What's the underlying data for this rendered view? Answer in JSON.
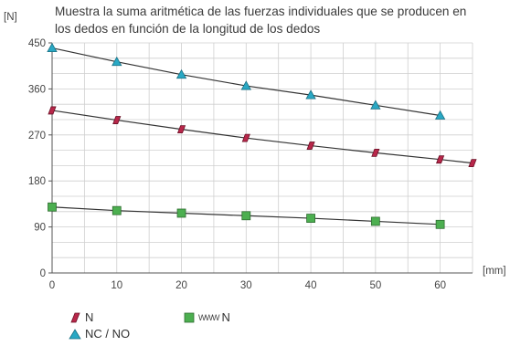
{
  "chart_data": {
    "type": "line",
    "title_lines": [
      "Muestra la suma aritmética de las fuerzas individuales que se producen en",
      "los dedos en función de la longitud de los dedos"
    ],
    "ylabel": "[N]",
    "xlabel": "[mm]",
    "xlim": [
      0,
      65
    ],
    "ylim": [
      0,
      450
    ],
    "xticks": [
      "0",
      "10",
      "20",
      "30",
      "40",
      "50",
      "60"
    ],
    "yticks": [
      "0",
      "90",
      "180",
      "270",
      "360",
      "450"
    ],
    "grid": true,
    "legend_position": "bottom-left",
    "series": [
      {
        "name": "NC / NO",
        "marker": "triangle",
        "color": "#29a8c4",
        "x": [
          0,
          10,
          20,
          30,
          40,
          50,
          60
        ],
        "y": [
          440,
          413,
          388,
          366,
          348,
          328,
          308
        ]
      },
      {
        "name": "N",
        "marker": "diamond",
        "color": "#b8274a",
        "x": [
          0,
          10,
          20,
          30,
          40,
          50,
          60,
          65
        ],
        "y": [
          318,
          299,
          281,
          264,
          249,
          235,
          222,
          215
        ]
      },
      {
        "name": "N",
        "marker": "square",
        "spring_symbol": true,
        "color": "#4caf50",
        "x": [
          0,
          10,
          20,
          30,
          40,
          50,
          60
        ],
        "y": [
          129,
          122,
          117,
          112,
          107,
          101,
          95
        ]
      }
    ]
  },
  "legend": {
    "n_label": "N",
    "spring_label": "N",
    "spring_glyph": "WWW",
    "ncno_label": "NC / NO"
  }
}
